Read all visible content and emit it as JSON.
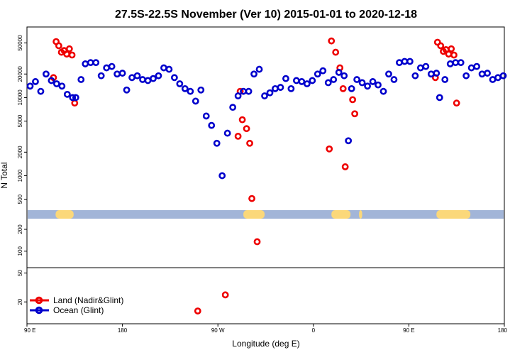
{
  "chart_data": {
    "type": "scatter",
    "title": "27.5S-22.5S November (Ver 10)   2015-01-01 to 2020-12-18",
    "xlabel": "Longitude (deg E)",
    "ylabel": "N Total",
    "xlim": [
      90,
      540
    ],
    "x_ticks": [
      {
        "value": 90,
        "label": "90 E"
      },
      {
        "value": 180,
        "label": "180"
      },
      {
        "value": 270,
        "label": "90 W"
      },
      {
        "value": 360,
        "label": "0"
      },
      {
        "value": 450,
        "label": "90 E"
      },
      {
        "value": 540,
        "label": "180"
      }
    ],
    "y_scale": "log",
    "upper_panel": {
      "ylim": [
        300,
        80000
      ],
      "y_ticks": [
        {
          "value": 500,
          "label": "500"
        },
        {
          "value": 1000,
          "label": "1000"
        },
        {
          "value": 2000,
          "label": "2000"
        },
        {
          "value": 5000,
          "label": "5000"
        },
        {
          "value": 10000,
          "label": "10000"
        },
        {
          "value": 20000,
          "label": "20000"
        },
        {
          "value": 50000,
          "label": "50000"
        }
      ]
    },
    "lower_panel": {
      "ylim": [
        10,
        300
      ],
      "y_ticks": [
        {
          "value": 20,
          "label": "20"
        },
        {
          "value": 50,
          "label": "50"
        },
        {
          "value": 100,
          "label": "100"
        },
        {
          "value": 200,
          "label": "200"
        }
      ]
    },
    "land_band_segments": [
      [
        117,
        134
      ],
      [
        294,
        314
      ],
      [
        377,
        395
      ],
      [
        403,
        406
      ],
      [
        476,
        508
      ]
    ],
    "colors": {
      "land": "#ee0000",
      "ocean": "#0000cc",
      "band_ocean": "#a2b5d8",
      "band_land": "#fbd87a"
    },
    "series": [
      {
        "name": "Land (Nadir&Glint)",
        "marker": "open-circle",
        "color": "#ee0000",
        "points": [
          [
            115,
            18000
          ],
          [
            117.5,
            52000
          ],
          [
            120,
            46000
          ],
          [
            122.5,
            38000
          ],
          [
            125,
            40000
          ],
          [
            127.5,
            36000
          ],
          [
            130,
            42000
          ],
          [
            132.5,
            35000
          ],
          [
            135,
            8500
          ],
          [
            251,
            15
          ],
          [
            277,
            25
          ],
          [
            291,
            12000
          ],
          [
            289,
            3200
          ],
          [
            293,
            5200
          ],
          [
            297,
            4000
          ],
          [
            300,
            2600
          ],
          [
            302,
            510
          ],
          [
            307,
            135
          ],
          [
            375,
            2200
          ],
          [
            377,
            53000
          ],
          [
            381,
            38000
          ],
          [
            385,
            24000
          ],
          [
            388,
            13000
          ],
          [
            390,
            1300
          ],
          [
            397,
            9400
          ],
          [
            399,
            6200
          ],
          [
            475,
            18000
          ],
          [
            477,
            51000
          ],
          [
            480,
            46000
          ],
          [
            482.5,
            39000
          ],
          [
            485,
            41000
          ],
          [
            487.5,
            36000
          ],
          [
            490,
            42000
          ],
          [
            492.5,
            35000
          ],
          [
            495,
            8500
          ]
        ]
      },
      {
        "name": "Ocean (Glint)",
        "marker": "open-circle",
        "color": "#0000cc",
        "points": [
          [
            93,
            14000
          ],
          [
            98,
            16000
          ],
          [
            103,
            12000
          ],
          [
            108,
            20000
          ],
          [
            113,
            16500
          ],
          [
            118,
            15000
          ],
          [
            123,
            14000
          ],
          [
            128,
            11000
          ],
          [
            133,
            10000
          ],
          [
            136,
            10000
          ],
          [
            141,
            17000
          ],
          [
            145,
            27000
          ],
          [
            150,
            28000
          ],
          [
            155,
            28000
          ],
          [
            160,
            19000
          ],
          [
            165,
            24000
          ],
          [
            170,
            25000
          ],
          [
            175,
            20000
          ],
          [
            180,
            20500
          ],
          [
            184,
            12500
          ],
          [
            189,
            18000
          ],
          [
            194,
            19000
          ],
          [
            199,
            17000
          ],
          [
            204,
            16500
          ],
          [
            209,
            17500
          ],
          [
            214,
            19000
          ],
          [
            219,
            24000
          ],
          [
            224,
            23000
          ],
          [
            229,
            18000
          ],
          [
            234,
            15000
          ],
          [
            239,
            13000
          ],
          [
            244,
            12000
          ],
          [
            249,
            9000
          ],
          [
            254,
            12500
          ],
          [
            259,
            5800
          ],
          [
            264,
            4400
          ],
          [
            269,
            2600
          ],
          [
            274,
            1000
          ],
          [
            279,
            3500
          ],
          [
            284,
            7500
          ],
          [
            289,
            10500
          ],
          [
            294,
            12000
          ],
          [
            299,
            12000
          ],
          [
            304,
            20000
          ],
          [
            309,
            23000
          ],
          [
            314,
            10500
          ],
          [
            319,
            11500
          ],
          [
            324,
            13000
          ],
          [
            329,
            13500
          ],
          [
            334,
            17500
          ],
          [
            339,
            13000
          ],
          [
            344,
            16500
          ],
          [
            349,
            16000
          ],
          [
            354,
            15000
          ],
          [
            359,
            16500
          ],
          [
            364,
            20000
          ],
          [
            369,
            22000
          ],
          [
            374,
            15500
          ],
          [
            379,
            17000
          ],
          [
            384,
            21000
          ],
          [
            389,
            19000
          ],
          [
            393,
            2800
          ],
          [
            396,
            13000
          ],
          [
            401,
            17000
          ],
          [
            406,
            15500
          ],
          [
            411,
            14000
          ],
          [
            416,
            16000
          ],
          [
            421,
            14500
          ],
          [
            426,
            12000
          ],
          [
            431,
            20000
          ],
          [
            436,
            17000
          ],
          [
            441,
            28000
          ],
          [
            446,
            29000
          ],
          [
            451,
            29000
          ],
          [
            456,
            19000
          ],
          [
            461,
            24000
          ],
          [
            466,
            25000
          ],
          [
            471,
            20000
          ],
          [
            476,
            20500
          ],
          [
            479,
            10000
          ],
          [
            484,
            17000
          ],
          [
            489,
            27000
          ],
          [
            494,
            28000
          ],
          [
            499,
            28000
          ],
          [
            504,
            19000
          ],
          [
            509,
            24000
          ],
          [
            514,
            25000
          ],
          [
            519,
            20000
          ],
          [
            524,
            20500
          ],
          [
            529,
            17000
          ],
          [
            534,
            18000
          ],
          [
            539,
            19000
          ]
        ]
      }
    ]
  }
}
